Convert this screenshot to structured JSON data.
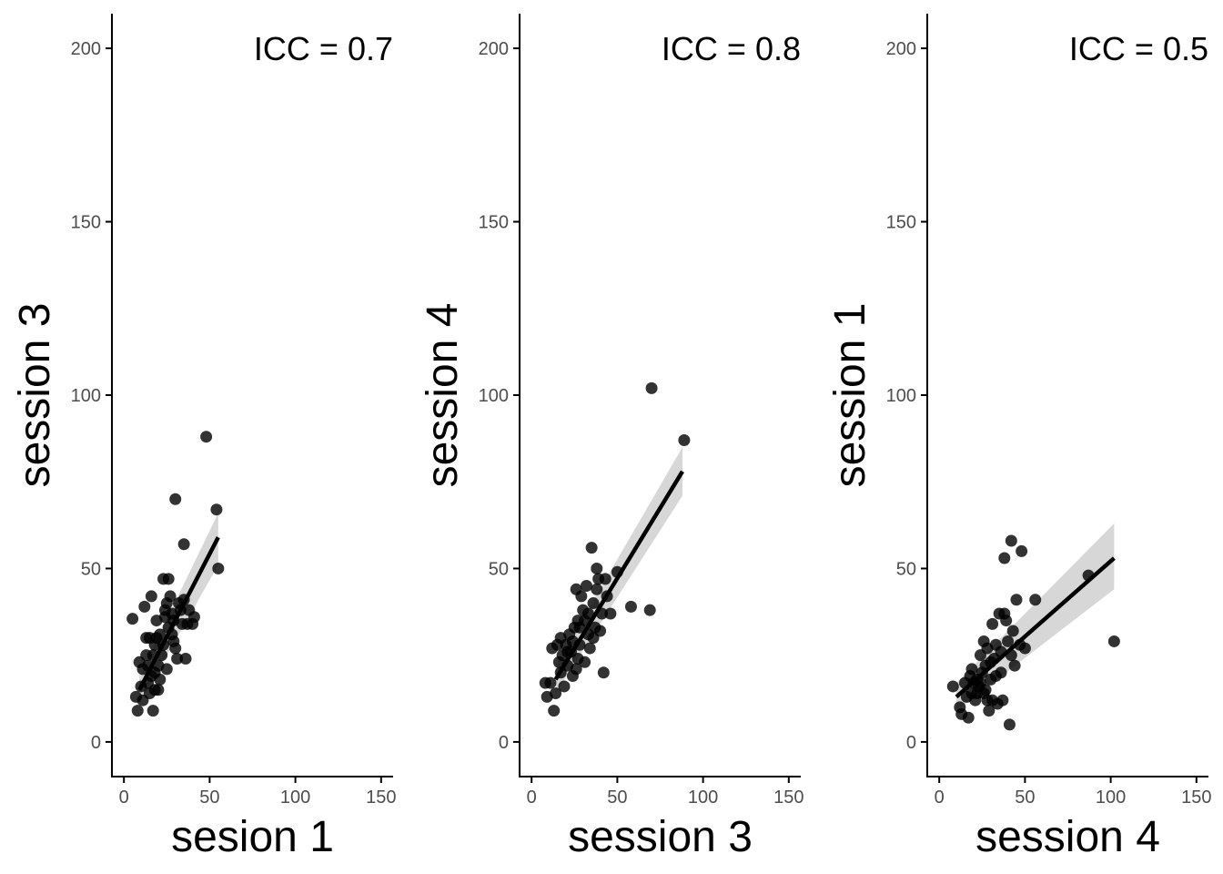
{
  "colors": {
    "points": "#000000",
    "fit_line": "#000000",
    "ribbon": "#d3d3d3",
    "axis": "#000000",
    "tick_label": "#4d4d4d"
  },
  "chart_data": [
    {
      "type": "scatter",
      "xlabel": "sesion 1",
      "ylabel": "session 3",
      "annotation": "ICC = 0.7",
      "xlim": [
        -7,
        157
      ],
      "ylim": [
        -10,
        210
      ],
      "xticks": [
        0,
        50,
        100,
        150
      ],
      "yticks": [
        0,
        50,
        100,
        150,
        200
      ],
      "grid": false,
      "fit": {
        "x0": 9,
        "y0": 15,
        "x1": 55,
        "y1": 59,
        "se_lo": 51,
        "se_hi": 66
      },
      "points": [
        [
          5,
          35.5
        ],
        [
          7,
          13
        ],
        [
          8,
          9
        ],
        [
          9,
          23
        ],
        [
          10,
          16
        ],
        [
          11,
          12
        ],
        [
          11,
          21
        ],
        [
          12,
          39
        ],
        [
          13,
          30
        ],
        [
          14,
          17
        ],
        [
          14,
          22
        ],
        [
          15,
          30
        ],
        [
          15,
          14
        ],
        [
          16,
          42
        ],
        [
          16,
          19
        ],
        [
          17,
          25
        ],
        [
          17,
          9
        ],
        [
          18,
          28
        ],
        [
          18,
          15
        ],
        [
          19,
          30
        ],
        [
          19,
          35
        ],
        [
          20,
          22
        ],
        [
          20,
          15
        ],
        [
          21,
          18
        ],
        [
          22,
          25
        ],
        [
          23,
          47
        ],
        [
          23,
          28
        ],
        [
          24,
          38
        ],
        [
          24,
          36
        ],
        [
          25,
          21
        ],
        [
          26,
          47
        ],
        [
          26,
          33
        ],
        [
          27,
          42
        ],
        [
          28,
          37
        ],
        [
          28,
          31
        ],
        [
          29,
          35
        ],
        [
          30,
          70
        ],
        [
          30,
          27
        ],
        [
          31,
          24
        ],
        [
          32,
          40
        ],
        [
          33,
          38
        ],
        [
          34,
          34
        ],
        [
          35,
          41
        ],
        [
          35,
          57
        ],
        [
          36,
          24
        ],
        [
          37,
          34
        ],
        [
          38,
          38
        ],
        [
          40,
          34
        ],
        [
          41,
          36
        ],
        [
          48,
          88
        ],
        [
          54,
          67
        ],
        [
          55,
          50
        ],
        [
          21,
          31
        ],
        [
          25,
          40
        ],
        [
          29,
          29
        ],
        [
          13,
          25
        ],
        [
          18,
          20
        ]
      ]
    },
    {
      "type": "scatter",
      "xlabel": "session 3",
      "ylabel": "session 4",
      "annotation": "ICC = 0.8",
      "xlim": [
        -7,
        157
      ],
      "ylim": [
        -10,
        210
      ],
      "xticks": [
        0,
        50,
        100,
        150
      ],
      "yticks": [
        0,
        50,
        100,
        150,
        200
      ],
      "grid": false,
      "fit": {
        "x0": 14,
        "y0": 18,
        "x1": 88,
        "y1": 78,
        "se_lo": 71,
        "se_hi": 85
      },
      "points": [
        [
          8,
          17
        ],
        [
          9,
          13
        ],
        [
          11,
          17
        ],
        [
          12,
          27
        ],
        [
          13,
          9
        ],
        [
          14,
          14
        ],
        [
          15,
          28
        ],
        [
          16,
          23
        ],
        [
          17,
          20
        ],
        [
          17,
          30
        ],
        [
          18,
          25
        ],
        [
          19,
          16
        ],
        [
          20,
          28
        ],
        [
          21,
          22
        ],
        [
          22,
          31
        ],
        [
          23,
          26
        ],
        [
          24,
          19
        ],
        [
          25,
          33
        ],
        [
          26,
          21
        ],
        [
          27,
          35
        ],
        [
          28,
          28
        ],
        [
          29,
          42
        ],
        [
          30,
          38
        ],
        [
          31,
          23
        ],
        [
          32,
          45
        ],
        [
          33,
          31
        ],
        [
          34,
          27
        ],
        [
          35,
          56
        ],
        [
          36,
          40
        ],
        [
          37,
          33
        ],
        [
          38,
          44
        ],
        [
          39,
          47
        ],
        [
          40,
          32
        ],
        [
          41,
          37
        ],
        [
          42,
          20
        ],
        [
          43,
          47
        ],
        [
          44,
          42
        ],
        [
          46,
          37
        ],
        [
          50,
          49
        ],
        [
          58,
          39
        ],
        [
          69,
          38
        ],
        [
          70,
          102
        ],
        [
          89,
          87
        ],
        [
          24,
          29
        ],
        [
          27,
          24
        ],
        [
          31,
          35
        ],
        [
          36,
          30
        ],
        [
          21,
          26
        ],
        [
          28,
          33
        ],
        [
          33,
          37
        ],
        [
          38,
          50
        ],
        [
          26,
          44
        ]
      ]
    },
    {
      "type": "scatter",
      "xlabel": "session 4",
      "ylabel": "session 1",
      "annotation": "ICC = 0.5",
      "xlim": [
        -7,
        157
      ],
      "ylim": [
        -10,
        210
      ],
      "xticks": [
        0,
        50,
        100,
        150
      ],
      "yticks": [
        0,
        50,
        100,
        150,
        200
      ],
      "grid": false,
      "fit": {
        "x0": 10,
        "y0": 13,
        "x1": 102,
        "y1": 53,
        "se_lo": 44,
        "se_hi": 63
      },
      "points": [
        [
          8,
          16
        ],
        [
          12,
          10
        ],
        [
          13,
          8
        ],
        [
          15,
          17
        ],
        [
          16,
          13
        ],
        [
          17,
          7
        ],
        [
          18,
          19
        ],
        [
          19,
          14
        ],
        [
          20,
          17
        ],
        [
          21,
          12
        ],
        [
          22,
          18
        ],
        [
          23,
          16
        ],
        [
          24,
          25
        ],
        [
          25,
          20
        ],
        [
          26,
          29
        ],
        [
          26,
          14
        ],
        [
          27,
          22
        ],
        [
          28,
          12
        ],
        [
          28,
          27
        ],
        [
          29,
          9
        ],
        [
          30,
          18
        ],
        [
          31,
          34
        ],
        [
          32,
          24
        ],
        [
          33,
          28
        ],
        [
          34,
          11
        ],
        [
          35,
          37
        ],
        [
          36,
          20
        ],
        [
          37,
          12
        ],
        [
          38,
          37
        ],
        [
          38,
          53
        ],
        [
          39,
          35
        ],
        [
          40,
          29
        ],
        [
          41,
          5
        ],
        [
          42,
          58
        ],
        [
          42,
          25
        ],
        [
          43,
          32
        ],
        [
          44,
          22
        ],
        [
          45,
          41
        ],
        [
          47,
          28
        ],
        [
          48,
          55
        ],
        [
          50,
          27
        ],
        [
          56,
          41
        ],
        [
          87,
          48
        ],
        [
          102,
          29
        ],
        [
          24,
          17
        ],
        [
          27,
          15
        ],
        [
          30,
          23
        ],
        [
          33,
          19
        ],
        [
          36,
          26
        ],
        [
          22,
          14
        ],
        [
          19,
          21
        ],
        [
          31,
          12
        ]
      ]
    }
  ]
}
